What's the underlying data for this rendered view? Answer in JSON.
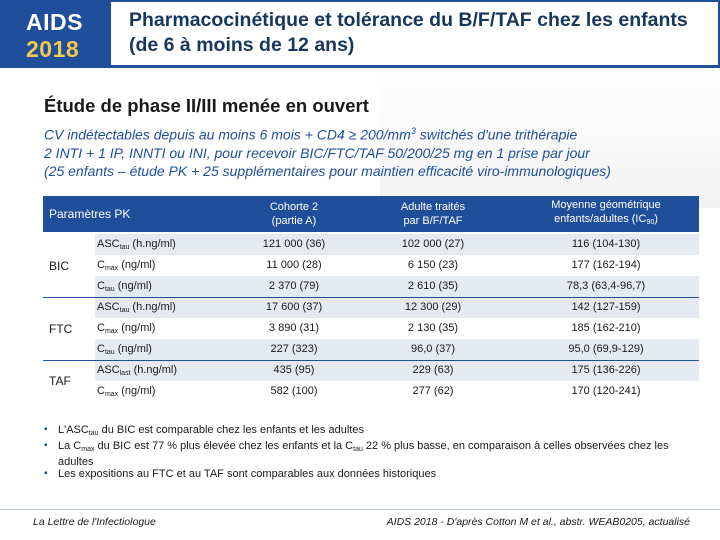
{
  "logo": {
    "line1": "AIDS",
    "line2": "2018"
  },
  "title": "Pharmacocinétique et tolérance du B/F/TAF chez les enfants (de 6 à moins de 12 ans)",
  "subtitle": "Étude de phase II/III menée en ouvert",
  "description": {
    "line1_pre": "CV indétectables depuis au moins 6 mois + CD4 ≥ 200/mm",
    "line1_sup": "3",
    "line1_post": " switchés d'une trithérapie",
    "line2": "2 INTI + 1 IP, INNTI ou INI, pour recevoir BIC/FTC/TAF 50/200/25 mg en 1 prise par jour",
    "line3": "(25 enfants – étude PK + 25 supplémentaires pour maintien efficacité viro-immunologiques)"
  },
  "table": {
    "header": {
      "params": "Paramètres PK",
      "col1_l1": "Cohorte 2",
      "col1_l2": "(partie A)",
      "col2_l1": "Adulte traités",
      "col2_l2": "par B/F/TAF",
      "col3_l1": "Moyenne géométrique",
      "col3_l2_pre": "enfants/adultes (IC",
      "col3_l2_sub": "90",
      "col3_l2_post": ")"
    },
    "groups": [
      "BIC",
      "FTC",
      "TAF"
    ],
    "rows": [
      {
        "param": "ASC",
        "sub": "tau",
        "unit": " (h.ng/ml)",
        "v1": "121 000 (36)",
        "v2": "102 000 (27)",
        "v3": "116 (104-130)"
      },
      {
        "param": "C",
        "sub": "max",
        "unit": " (ng/ml)",
        "v1": "11 000 (28)",
        "v2": "6 150 (23)",
        "v3": "177 (162-194)"
      },
      {
        "param": "C",
        "sub": "tau",
        "unit": " (ng/ml)",
        "v1": "2 370 (79)",
        "v2": "2 610 (35)",
        "v3": "78,3 (63,4-96,7)"
      },
      {
        "param": "ASC",
        "sub": "tau",
        "unit": " (h.ng/ml)",
        "v1": "17 600 (37)",
        "v2": "12 300 (29)",
        "v3": "142 (127-159)"
      },
      {
        "param": "C",
        "sub": "max",
        "unit": " (ng/ml)",
        "v1": "3 890 (31)",
        "v2": "2 130 (35)",
        "v3": "185 (162-210)"
      },
      {
        "param": "C",
        "sub": "tau",
        "unit": " (ng/ml)",
        "v1": "227 (323)",
        "v2": "96,0 (37)",
        "v3": "95,0 (69,9-129)"
      },
      {
        "param": "ASC",
        "sub": "last",
        "unit": " (h.ng/ml)",
        "v1": "435 (95)",
        "v2": "229 (63)",
        "v3": "175 (136-226)"
      },
      {
        "param": "C",
        "sub": "max",
        "unit": " (ng/ml)",
        "v1": "582 (100)",
        "v2": "277 (62)",
        "v3": "170 (120-241)"
      }
    ]
  },
  "bullets": {
    "b1_a": "L'ASC",
    "b1_sub": "tau",
    "b1_b": " du BIC est comparable chez les enfants et les adultes",
    "b2_a": "La C",
    "b2_sub1": "max",
    "b2_b": " du BIC est 77 % plus élevée chez les enfants et la C",
    "b2_sub2": "tau",
    "b2_c": " 22 % plus basse, en comparaison à celles observées chez les adultes",
    "b3": "Les expositions au FTC et au TAF sont comparables aux données historiques"
  },
  "footer": {
    "left": "La Lettre de l'Infectiologue",
    "right": "AIDS 2018 - D'après Cotton M et al., abstr. WEAB0205, actualisé"
  }
}
